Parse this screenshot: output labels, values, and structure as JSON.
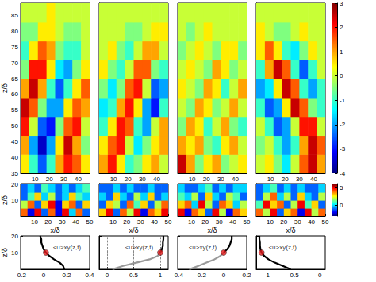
{
  "chart_data": [
    {
      "type": "heatmap",
      "ylabel": "z/δ",
      "x": [
        3,
        9,
        15,
        21,
        27,
        33,
        39,
        45
      ],
      "y": [
        38,
        44,
        50,
        56,
        62,
        68,
        74,
        80,
        86
      ],
      "values": [
        [
          0.5,
          -1,
          -2.5,
          -1,
          1,
          2,
          1.5,
          0.5
        ],
        [
          1,
          -2,
          -3.5,
          -2,
          0.5,
          2.5,
          1,
          -0.5
        ],
        [
          2,
          0,
          -2.5,
          -3,
          -0.5,
          1.5,
          2,
          0
        ],
        [
          2.5,
          1.5,
          -0.5,
          -2,
          -2,
          0.5,
          1.5,
          1
        ],
        [
          1,
          2.5,
          1,
          -1,
          -2.5,
          -1,
          0.5,
          1.5
        ],
        [
          -0.5,
          2,
          2,
          0.5,
          -1.5,
          -2,
          -0.5,
          0.5
        ],
        [
          -1,
          0.5,
          1.5,
          1,
          -0.5,
          -1,
          -1,
          0
        ],
        [
          -0.5,
          -0.5,
          0.5,
          0.5,
          0,
          -0.5,
          -0.5,
          0
        ],
        [
          0,
          0,
          0,
          0.5,
          0,
          0,
          0,
          0
        ]
      ],
      "xlim": [
        0,
        48
      ],
      "ylim": [
        35,
        89
      ],
      "xticks": [
        10,
        20,
        30,
        40
      ],
      "yticks": [
        35,
        40,
        45,
        50,
        55,
        60,
        65,
        70,
        75,
        80,
        85
      ]
    },
    {
      "type": "heatmap",
      "tick_labels": "x",
      "x": [
        3,
        9,
        15,
        21,
        27,
        33,
        39,
        45
      ],
      "y": [
        38,
        44,
        50,
        56,
        62,
        68,
        74,
        80,
        86
      ],
      "values": [
        [
          1,
          2,
          0.5,
          -1,
          -0.5,
          0.5,
          1,
          0
        ],
        [
          0.5,
          1.5,
          2,
          0,
          -1.5,
          -0.5,
          0.5,
          1
        ],
        [
          -1,
          0.5,
          2,
          1.5,
          -1,
          -2,
          0,
          1
        ],
        [
          -1.5,
          -1,
          1,
          2,
          0.5,
          -2,
          -3,
          -1
        ],
        [
          -0.5,
          -1.5,
          -0.5,
          1.5,
          2,
          0,
          -2.5,
          -2
        ],
        [
          0.5,
          -0.5,
          -1,
          0,
          1.5,
          1.5,
          -0.5,
          -1
        ],
        [
          0,
          0.5,
          -0.5,
          -1,
          0,
          1,
          1,
          0
        ],
        [
          0,
          0,
          0,
          -0.5,
          -0.5,
          0,
          0.5,
          0.5
        ],
        [
          0,
          0,
          0,
          0,
          0,
          0,
          0,
          0
        ]
      ],
      "xlim": [
        0,
        48
      ],
      "ylim": [
        35,
        89
      ],
      "xticks": [
        10,
        20,
        30,
        40
      ],
      "yticks": [
        35,
        40,
        45,
        50,
        55,
        60,
        65,
        70,
        75,
        80,
        85
      ]
    },
    {
      "type": "heatmap",
      "tick_labels": "x",
      "x": [
        3,
        9,
        15,
        21,
        27,
        33,
        39,
        45
      ],
      "y": [
        38,
        44,
        50,
        56,
        62,
        68,
        74,
        80,
        86
      ],
      "values": [
        [
          2.5,
          1,
          -0.5,
          0.5,
          1,
          -0.5,
          0,
          0.5
        ],
        [
          1,
          0.5,
          1,
          -0.5,
          -1,
          0.5,
          1,
          0
        ],
        [
          -0.5,
          1,
          0.5,
          -1,
          0,
          1,
          -0.5,
          -1
        ],
        [
          0,
          -0.5,
          1,
          0.5,
          -0.5,
          0,
          1,
          0
        ],
        [
          0.5,
          0,
          -0.5,
          1,
          0.5,
          -1,
          0,
          1
        ],
        [
          0,
          0.5,
          0,
          -0.5,
          1,
          0.5,
          -0.5,
          0
        ],
        [
          -0.5,
          0,
          0.5,
          0,
          -0.5,
          0.5,
          0.5,
          -0.5
        ],
        [
          0,
          -0.5,
          0,
          0.5,
          0,
          0,
          0,
          0
        ],
        [
          0,
          0,
          0,
          0,
          0,
          0,
          0,
          0
        ]
      ],
      "xlim": [
        0,
        48
      ],
      "ylim": [
        35,
        89
      ],
      "xticks": [
        10,
        20,
        30,
        40
      ],
      "yticks": [
        35,
        40,
        45,
        50,
        55,
        60,
        65,
        70,
        75,
        80,
        85
      ]
    },
    {
      "type": "heatmap",
      "tick_labels": "x",
      "x": [
        3,
        9,
        15,
        21,
        27,
        33,
        39,
        45
      ],
      "y": [
        38,
        44,
        50,
        56,
        62,
        68,
        74,
        80,
        86
      ],
      "values": [
        [
          0,
          0.5,
          -0.5,
          -1.5,
          0,
          1.5,
          2.5,
          1
        ],
        [
          -0.5,
          0,
          -1,
          -2,
          -1,
          1,
          2.5,
          1.5
        ],
        [
          0,
          -1,
          -2.5,
          -2,
          0,
          2,
          2,
          0
        ],
        [
          -1,
          -2.5,
          -2,
          0.5,
          2.5,
          1.5,
          -0.5,
          -1
        ],
        [
          -2,
          -1.5,
          0.5,
          2.5,
          1.5,
          -1,
          -2,
          -1
        ],
        [
          -1,
          1,
          2.5,
          1.5,
          -1,
          -2.5,
          -1,
          0
        ],
        [
          0.5,
          1.5,
          0.5,
          -1,
          -1.5,
          -0.5,
          0.5,
          0
        ],
        [
          0.5,
          0,
          -0.5,
          -0.5,
          0,
          0.5,
          0,
          0
        ],
        [
          0,
          0,
          0,
          0,
          0,
          0,
          0,
          0
        ]
      ],
      "xlim": [
        0,
        48
      ],
      "ylim": [
        35,
        89
      ],
      "xticks": [
        10,
        20,
        30,
        40
      ],
      "yticks": [
        35,
        40,
        45,
        50,
        55,
        60,
        65,
        70,
        75,
        80,
        85
      ]
    },
    {
      "type": "colorbar",
      "range": [
        -4,
        3
      ],
      "ticks": [
        -4,
        -3,
        -2,
        -1,
        0,
        1,
        2,
        3
      ]
    },
    {
      "type": "heatmap",
      "xlabel": "x/δ",
      "ylabel": "z/δ",
      "x": [
        2.5,
        7.5,
        12.5,
        17.5,
        22.5,
        27.5,
        32.5,
        37.5,
        42.5,
        47.5
      ],
      "y": [
        2.5,
        7.5,
        12.5,
        17.5
      ],
      "values": [
        [
          4,
          -2,
          5,
          -1,
          4,
          -2,
          5,
          0,
          4,
          -1
        ],
        [
          2,
          4,
          -1,
          3,
          5,
          -2,
          3,
          4,
          -1,
          3
        ],
        [
          -1,
          1,
          3,
          0,
          2,
          -1,
          0,
          3,
          1,
          0
        ],
        [
          -1,
          0,
          -1,
          1,
          0,
          -1,
          0,
          -1,
          0,
          1
        ]
      ],
      "xlim": [
        0,
        50
      ],
      "ylim": [
        0,
        20
      ],
      "xticks": [
        10,
        20,
        30,
        40,
        50
      ],
      "yticks": [
        10,
        20
      ]
    },
    {
      "type": "heatmap",
      "xlabel": "x/δ",
      "tick_labels": "x",
      "x": [
        2.5,
        7.5,
        12.5,
        17.5,
        22.5,
        27.5,
        32.5,
        37.5,
        42.5,
        47.5
      ],
      "y": [
        2.5,
        7.5,
        12.5,
        17.5
      ],
      "values": [
        [
          3,
          5,
          -1,
          4,
          2,
          5,
          -2,
          4,
          3,
          5
        ],
        [
          -1,
          3,
          2,
          -1,
          4,
          1,
          3,
          -1,
          2,
          4
        ],
        [
          0,
          -1,
          3,
          0,
          -1,
          2,
          0,
          3,
          -1,
          0
        ],
        [
          -1,
          -1,
          0,
          -1,
          0,
          -1,
          -1,
          0,
          -1,
          -1
        ]
      ],
      "xlim": [
        0,
        50
      ],
      "ylim": [
        0,
        20
      ],
      "xticks": [
        10,
        20,
        30,
        40,
        50
      ],
      "yticks": [
        10,
        20
      ]
    },
    {
      "type": "heatmap",
      "xlabel": "x/δ",
      "tick_labels": "x",
      "x": [
        2.5,
        7.5,
        12.5,
        17.5,
        22.5,
        27.5,
        32.5,
        37.5,
        42.5,
        47.5
      ],
      "y": [
        2.5,
        7.5,
        12.5,
        17.5
      ],
      "values": [
        [
          5,
          -2,
          4,
          3,
          -1,
          5,
          2,
          -2,
          4,
          3
        ],
        [
          3,
          4,
          0,
          5,
          2,
          -1,
          4,
          3,
          0,
          2
        ],
        [
          1,
          0,
          2,
          -1,
          3,
          0,
          -1,
          2,
          1,
          -1
        ],
        [
          0,
          -1,
          -1,
          0,
          1,
          -1,
          0,
          -1,
          0,
          0
        ]
      ],
      "xlim": [
        0,
        50
      ],
      "ylim": [
        0,
        20
      ],
      "xticks": [
        10,
        20,
        30,
        40,
        50
      ],
      "yticks": [
        10,
        20
      ]
    },
    {
      "type": "heatmap",
      "xlabel": "x/δ",
      "tick_labels": "x",
      "x": [
        2.5,
        7.5,
        12.5,
        17.5,
        22.5,
        27.5,
        32.5,
        37.5,
        42.5,
        47.5
      ],
      "y": [
        2.5,
        7.5,
        12.5,
        17.5
      ],
      "values": [
        [
          4,
          2,
          5,
          -1,
          3,
          4,
          -2,
          5,
          2,
          4
        ],
        [
          1,
          5,
          3,
          4,
          -1,
          2,
          5,
          1,
          3,
          -1
        ],
        [
          -1,
          2,
          4,
          0,
          2,
          -1,
          3,
          0,
          -1,
          2
        ],
        [
          -1,
          0,
          1,
          -1,
          0,
          -1,
          0,
          -1,
          -1,
          0
        ]
      ],
      "xlim": [
        0,
        50
      ],
      "ylim": [
        0,
        20
      ],
      "xticks": [
        10,
        20,
        30,
        40,
        50
      ],
      "yticks": [
        10,
        20
      ]
    },
    {
      "type": "colorbar",
      "range": [
        -3,
        6
      ],
      "ticks": [
        0,
        5
      ]
    },
    {
      "type": "line",
      "ylabel": "z/δ",
      "grid": true,
      "xlim": [
        -0.2,
        0.4
      ],
      "ylim": [
        0,
        20
      ],
      "xticks": [
        -0.2,
        0,
        0.2,
        0.4
      ],
      "yticks": [
        10,
        20
      ],
      "series": [
        {
          "color": "#000000",
          "x": [
            0.18,
            0.17,
            0.14,
            0.09,
            0.05,
            0.02,
            0.0,
            -0.01,
            -0.02,
            -0.02,
            -0.03
          ],
          "y": [
            0,
            2,
            4,
            6,
            8,
            10,
            12,
            14,
            16,
            18,
            20
          ]
        }
      ],
      "point": {
        "x": 0.02,
        "y": 10,
        "color": "#e41a1c",
        "label": "<u>xy(z,t)"
      }
    },
    {
      "type": "line",
      "tick_labels": "x",
      "grid": true,
      "xlim": [
        -0.15,
        1.15
      ],
      "ylim": [
        0,
        20
      ],
      "xticks": [
        0,
        0.5,
        1
      ],
      "yticks": [
        10,
        20
      ],
      "series": [
        {
          "color": "#9a9a9a",
          "x": [
            0.1,
            0.3,
            0.55,
            0.8,
            0.95,
            1.0
          ],
          "y": [
            0,
            2,
            4,
            6,
            8,
            10
          ]
        },
        {
          "color": "#000000",
          "x": [
            1.0,
            1.03,
            1.05,
            1.05,
            1.06,
            1.06
          ],
          "y": [
            10,
            12,
            14,
            16,
            18,
            20
          ]
        }
      ],
      "point": {
        "x": 1.0,
        "y": 10,
        "color": "#e41a1c",
        "label": "<u>xy(z,t)"
      }
    },
    {
      "type": "line",
      "tick_labels": "x",
      "grid": true,
      "xlim": [
        -0.4,
        0.2
      ],
      "ylim": [
        0,
        20
      ],
      "xticks": [
        -0.4,
        -0.2,
        0,
        0.2
      ],
      "yticks": [
        10,
        20
      ],
      "series": [
        {
          "color": "#9a9a9a",
          "x": [
            -0.3,
            -0.22,
            -0.15,
            -0.08,
            -0.03,
            0.0
          ],
          "y": [
            0,
            2,
            4,
            6,
            8,
            10
          ]
        },
        {
          "color": "#000000",
          "x": [
            0.0,
            0.03,
            0.05,
            0.06,
            0.07,
            0.07
          ],
          "y": [
            10,
            12,
            14,
            16,
            18,
            20
          ]
        }
      ],
      "point": {
        "x": 0.0,
        "y": 10,
        "color": "#e41a1c",
        "label": "<u>xy(z,t)"
      }
    },
    {
      "type": "line",
      "tick_labels": "x",
      "grid": true,
      "xlim": [
        -1.2,
        0.1
      ],
      "ylim": [
        0,
        20
      ],
      "xticks": [
        -1,
        -0.5,
        0
      ],
      "yticks": [
        10,
        20
      ],
      "series": [
        {
          "color": "#000000",
          "x": [
            -0.55,
            -0.7,
            -0.85,
            -0.97,
            -1.05,
            -1.1,
            -1.12,
            -1.13,
            -1.13,
            -1.14,
            -1.14
          ],
          "y": [
            0,
            2,
            4,
            6,
            8,
            10,
            12,
            14,
            16,
            18,
            20
          ]
        }
      ],
      "point": {
        "x": -1.1,
        "y": 10,
        "color": "#e41a1c",
        "label": "<u>xy(z,t)"
      }
    }
  ]
}
